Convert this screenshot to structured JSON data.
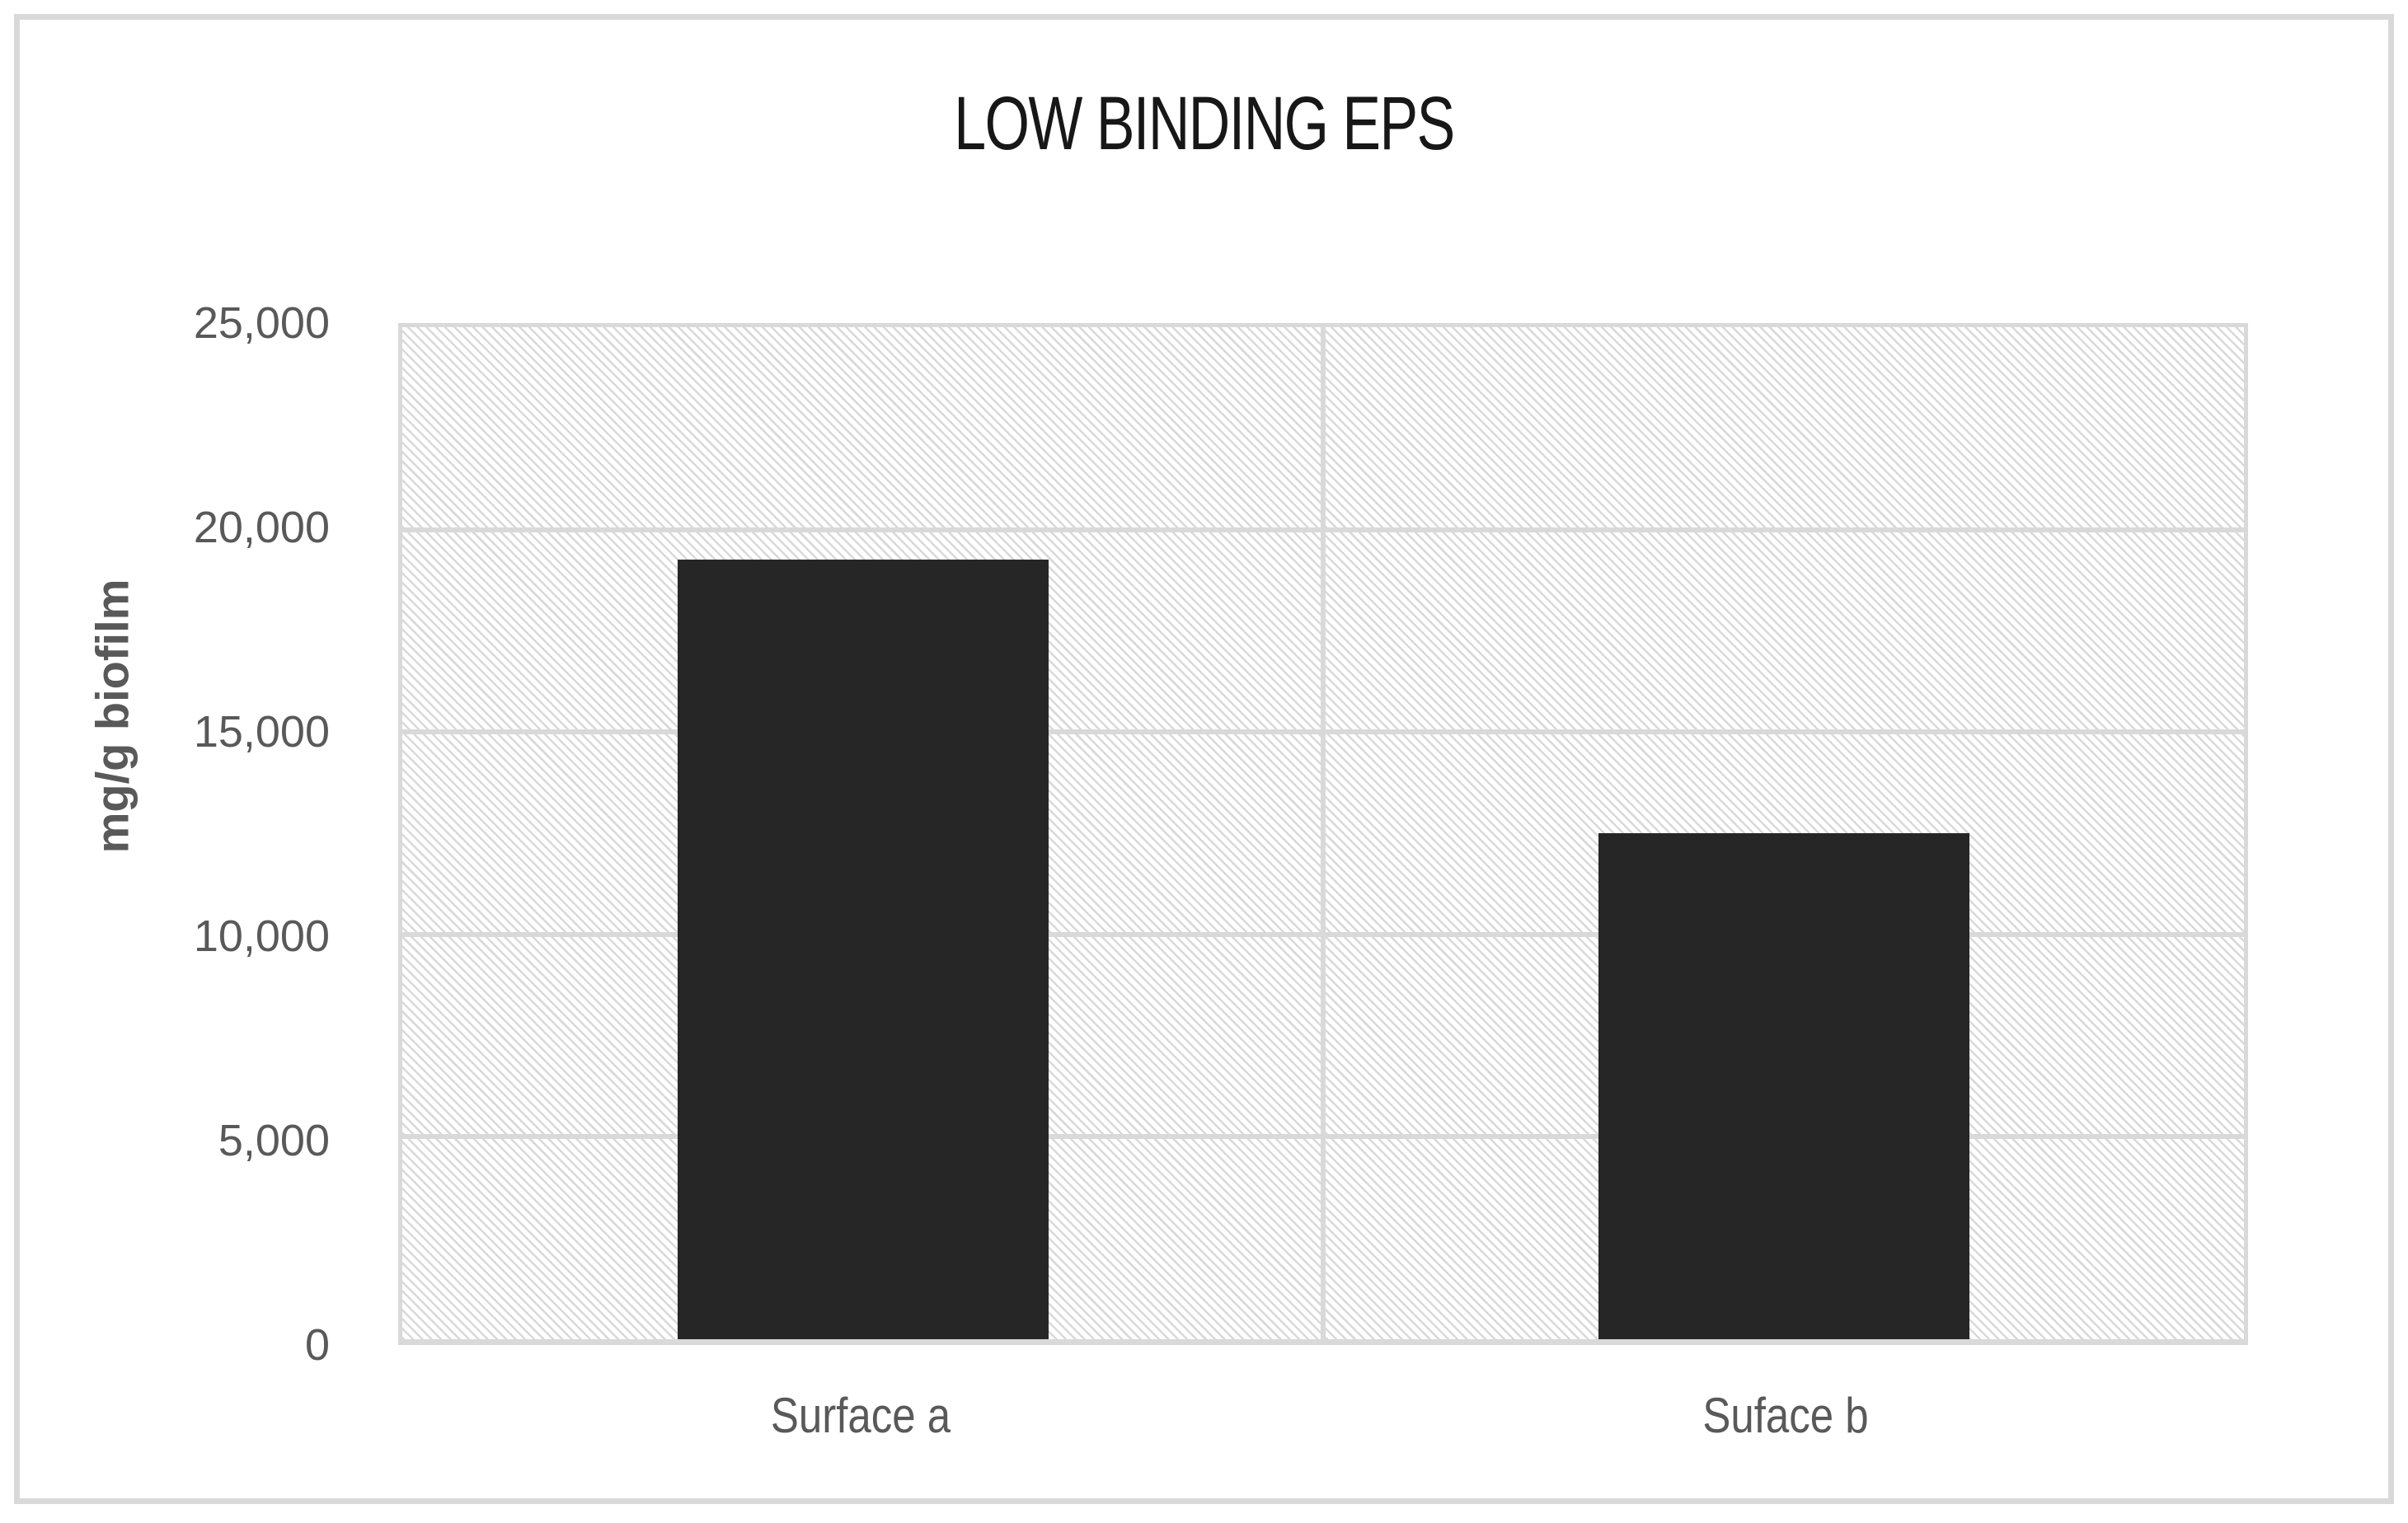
{
  "chart_data": {
    "type": "bar",
    "title": "LOW BINDING EPS",
    "xlabel": "",
    "ylabel": "mg/g biofilm",
    "categories": [
      "Surface a",
      "Suface b"
    ],
    "values": [
      19250,
      12500
    ],
    "ylim": [
      0,
      25000
    ],
    "ytick_step": 5000,
    "yticks_top_to_bottom": [
      "25,000",
      "20,000",
      "15,000",
      "10,000",
      "5,000",
      "0"
    ],
    "grid": true,
    "legend": false,
    "bar_color": "#262626",
    "gridline_color": "#d9d9d9",
    "hatch_pattern": "light-downward-diagonal",
    "hatch_color": "#d9d9d9",
    "plot_background": "#ffffff",
    "axis_label_color": "#595959",
    "title_color": "#171717",
    "frame_border_color": "#d9d9d9"
  }
}
